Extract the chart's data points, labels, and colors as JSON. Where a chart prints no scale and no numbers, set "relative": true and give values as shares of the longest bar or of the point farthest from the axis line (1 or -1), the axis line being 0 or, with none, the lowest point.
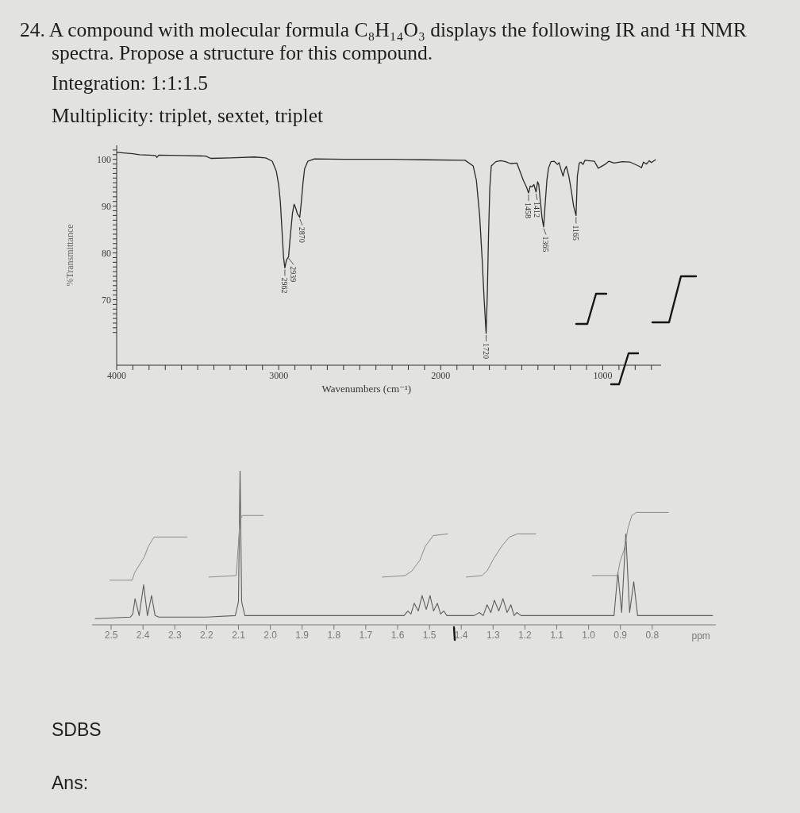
{
  "chart_data": [
    {
      "type": "line",
      "title": "24. A compound with molecular formula C₈H₁₄O₃ displays the following IR and ¹H NMR spectra. Propose a structure for this compound.",
      "subtitle": "Integration: 1:1:1.5",
      "xlabel": "Wavenumbers (cm⁻¹)",
      "ylabel": "%Transmittance",
      "color": "#2a2a2a",
      "x": [
        4000,
        3900,
        3860,
        3800,
        3760,
        3752,
        3740,
        3600,
        3450,
        3420,
        3300,
        3150,
        3080,
        3040,
        3015,
        3000,
        2990,
        2980,
        2970,
        2962,
        2952,
        2939,
        2930,
        2915,
        2905,
        2895,
        2885,
        2870,
        2860,
        2850,
        2840,
        2820,
        2780,
        2600,
        2300,
        2100,
        1850,
        1800,
        1780,
        1760,
        1745,
        1732,
        1720,
        1712,
        1705,
        1697,
        1688,
        1660,
        1630,
        1600,
        1570,
        1530,
        1505,
        1490,
        1470,
        1458,
        1448,
        1438,
        1425,
        1412,
        1402,
        1395,
        1385,
        1375,
        1365,
        1355,
        1345,
        1335,
        1320,
        1300,
        1280,
        1270,
        1255,
        1245,
        1235,
        1225,
        1210,
        1195,
        1180,
        1165,
        1157,
        1145,
        1135,
        1122,
        1110,
        1052,
        1028,
        987,
        962,
        930,
        880,
        831,
        774,
        761,
        749,
        730,
        713,
        700,
        675
      ],
      "values": [
        101.5,
        101.2,
        101.0,
        100.9,
        100.8,
        100.4,
        100.9,
        100.8,
        100.7,
        100.2,
        100.3,
        100.5,
        100.3,
        99.6,
        97.5,
        94.5,
        91.0,
        85.0,
        79.0,
        76.8,
        78.5,
        79.2,
        83.0,
        88.5,
        90.4,
        89.6,
        88.4,
        87.6,
        91.0,
        95.0,
        98.0,
        99.6,
        100.1,
        100.0,
        100.0,
        99.9,
        99.8,
        98.6,
        95.5,
        88.0,
        79.0,
        70.0,
        62.8,
        72.0,
        84.0,
        94.0,
        98.6,
        99.5,
        99.7,
        99.5,
        99.1,
        99.2,
        96.9,
        95.5,
        94.0,
        92.8,
        94.3,
        94.1,
        94.6,
        93.0,
        95.2,
        94.6,
        91.0,
        87.5,
        85.6,
        90.7,
        95.5,
        98.1,
        99.5,
        99.6,
        98.9,
        99.3,
        97.5,
        96.4,
        97.8,
        98.5,
        96.5,
        93.5,
        90.0,
        88.0,
        96.4,
        99.2,
        99.4,
        98.9,
        99.8,
        99.6,
        98.1,
        98.9,
        99.6,
        99.2,
        99.5,
        99.4,
        98.5,
        98.2,
        99.4,
        99.0,
        99.7,
        99.3,
        99.9
      ],
      "xlim": [
        4000,
        640
      ],
      "xticks": [
        4000,
        {
          "value": 3900,
          "label": null
        },
        {
          "value": 3800,
          "label": null
        },
        {
          "value": 3700,
          "label": null
        },
        {
          "value": 3600,
          "label": null
        },
        {
          "value": 3500,
          "label": null
        },
        {
          "value": 3400,
          "label": null
        },
        {
          "value": 3300,
          "label": null
        },
        {
          "value": 3200,
          "label": null
        },
        {
          "value": 3100,
          "label": null
        },
        3000,
        {
          "value": 2900,
          "label": null
        },
        {
          "value": 2800,
          "label": null
        },
        {
          "value": 2700,
          "label": null
        },
        {
          "value": 2600,
          "label": null
        },
        {
          "value": 2500,
          "label": null
        },
        {
          "value": 2400,
          "label": null
        },
        {
          "value": 2300,
          "label": null
        },
        {
          "value": 2200,
          "label": null
        },
        {
          "value": 2100,
          "label": null
        },
        2000,
        {
          "value": 1900,
          "label": null
        },
        {
          "value": 1800,
          "label": null
        },
        {
          "value": 1700,
          "label": null
        },
        {
          "value": 1600,
          "label": null
        },
        {
          "value": 1500,
          "label": null
        },
        {
          "value": 1400,
          "label": null
        },
        {
          "value": 1300,
          "label": null
        },
        {
          "value": 1200,
          "label": null
        },
        {
          "value": 1100,
          "label": null
        },
        1000,
        {
          "value": 900,
          "label": null
        },
        {
          "value": 800,
          "label": null
        },
        {
          "value": 700,
          "label": null
        }
      ],
      "ylim": [
        56,
        103
      ],
      "yticks": [
        {
          "value": 63,
          "label": null
        },
        {
          "value": 64,
          "label": null
        },
        {
          "value": 65,
          "label": null
        },
        {
          "value": 66,
          "label": null
        },
        {
          "value": 67,
          "label": null
        },
        {
          "value": 68,
          "label": null
        },
        {
          "value": 69,
          "label": null
        },
        70,
        {
          "value": 71,
          "label": null
        },
        {
          "value": 72,
          "label": null
        },
        {
          "value": 73,
          "label": null
        },
        {
          "value": 74,
          "label": null
        },
        {
          "value": 75,
          "label": null
        },
        {
          "value": 76,
          "label": null
        },
        {
          "value": 77,
          "label": null
        },
        {
          "value": 78,
          "label": null
        },
        {
          "value": 79,
          "label": null
        },
        80,
        {
          "value": 81,
          "label": null
        },
        {
          "value": 82,
          "label": null
        },
        {
          "value": 83,
          "label": null
        },
        {
          "value": 84,
          "label": null
        },
        {
          "value": 85,
          "label": null
        },
        {
          "value": 86,
          "label": null
        },
        {
          "value": 87,
          "label": null
        },
        {
          "value": 88,
          "label": null
        },
        {
          "value": 89,
          "label": null
        },
        90,
        {
          "value": 91,
          "label": null
        },
        {
          "value": 92,
          "label": null
        },
        {
          "value": 93,
          "label": null
        },
        {
          "value": 94,
          "label": null
        },
        {
          "value": 95,
          "label": null
        },
        {
          "value": 96,
          "label": null
        },
        {
          "value": 97,
          "label": null
        },
        {
          "value": 98,
          "label": null
        },
        {
          "value": 99,
          "label": null
        },
        100,
        {
          "value": 101,
          "label": null
        },
        {
          "value": 102,
          "label": null
        }
      ],
      "annotations": [
        "Multiplicity: triplet, sextet, triplet",
        {
          "text": "2962",
          "x": 2962,
          "y": 76.8
        },
        {
          "text": "2939",
          "x": 2939,
          "y": 79.2
        },
        {
          "text": "2870",
          "x": 2870,
          "y": 87.6
        },
        {
          "text": "1720",
          "x": 1720,
          "y": 62.8
        },
        {
          "text": "1458",
          "x": 1458,
          "y": 92.8
        },
        {
          "text": "1412",
          "x": 1412,
          "y": 93.0
        },
        {
          "text": "1365",
          "x": 1365,
          "y": 85.6
        },
        {
          "text": "1165",
          "x": 1165,
          "y": 88.0
        }
      ]
    },
    {
      "type": "line",
      "relative": true,
      "xlabel": "ppm",
      "x": [
        2.55,
        2.44,
        2.432,
        2.425,
        2.412,
        2.398,
        2.386,
        2.373,
        2.362,
        2.35,
        2.2,
        2.11,
        2.1,
        2.095,
        2.09,
        2.08,
        2.0,
        1.8,
        1.6,
        1.58,
        1.568,
        1.558,
        1.548,
        1.535,
        1.523,
        1.51,
        1.498,
        1.487,
        1.475,
        1.465,
        1.455,
        1.445,
        1.36,
        1.343,
        1.331,
        1.319,
        1.307,
        1.296,
        1.282,
        1.269,
        1.256,
        1.244,
        1.234,
        1.225,
        1.212,
        1.0,
        0.92,
        0.908,
        0.896,
        0.883,
        0.871,
        0.858,
        0.846,
        0.61
      ],
      "series": [
        {
          "color": "#5e5e5e",
          "values": [
            0.04,
            0.05,
            0.07,
            0.17,
            0.06,
            0.26,
            0.06,
            0.19,
            0.06,
            0.05,
            0.05,
            0.06,
            0.15,
            1,
            0.15,
            0.06,
            0.06,
            0.06,
            0.06,
            0.06,
            0.09,
            0.07,
            0.14,
            0.09,
            0.19,
            0.1,
            0.19,
            0.09,
            0.14,
            0.07,
            0.09,
            0.06,
            0.06,
            0.08,
            0.06,
            0.13,
            0.08,
            0.16,
            0.09,
            0.17,
            0.08,
            0.13,
            0.06,
            0.08,
            0.06,
            0.06,
            0.06,
            0.34,
            0.08,
            0.59,
            0.08,
            0.28,
            0.06,
            0.06
          ]
        },
        {
          "color": "#8a8a8a",
          "x": [
            2.504,
            2.434,
            2.426,
            2.396,
            2.383,
            2.365,
            2.262,
            2.23,
            2.193,
            2.107,
            2.095,
            2.088,
            2.022,
            1.8,
            1.648,
            1.576,
            1.555,
            1.53,
            1.513,
            1.488,
            1.443,
            1.41,
            1.384,
            1.335,
            1.319,
            1.298,
            1.273,
            1.249,
            1.224,
            1.166,
            1.1,
            0.988,
            0.909,
            0.901,
            0.888,
            0.876,
            0.864,
            0.85,
            0.749
          ],
          "values": [
            0.29,
            0.29,
            0.34,
            0.44,
            0.51,
            0.57,
            0.57,
            null,
            0.31,
            0.32,
            0.68,
            0.71,
            0.71,
            null,
            0.31,
            0.32,
            0.35,
            0.42,
            0.51,
            0.58,
            0.59,
            null,
            0.31,
            0.32,
            0.35,
            0.43,
            0.51,
            0.57,
            0.59,
            0.59,
            null,
            0.32,
            0.32,
            0.41,
            0.49,
            0.63,
            0.71,
            0.73,
            0.73
          ]
        }
      ],
      "xlim": [
        2.56,
        0.6
      ],
      "xticks": [
        2.5,
        2.4,
        2.3,
        2.2,
        2.1,
        {
          "value": 2,
          "label": "2.0"
        },
        1.9,
        1.8,
        1.7,
        1.6,
        1.5,
        1.4,
        1.3,
        1.2,
        1.1,
        {
          "value": 1,
          "label": "1.0"
        },
        0.9,
        0.8
      ],
      "annotations": [
        "SDBS",
        "Ans:"
      ]
    }
  ]
}
